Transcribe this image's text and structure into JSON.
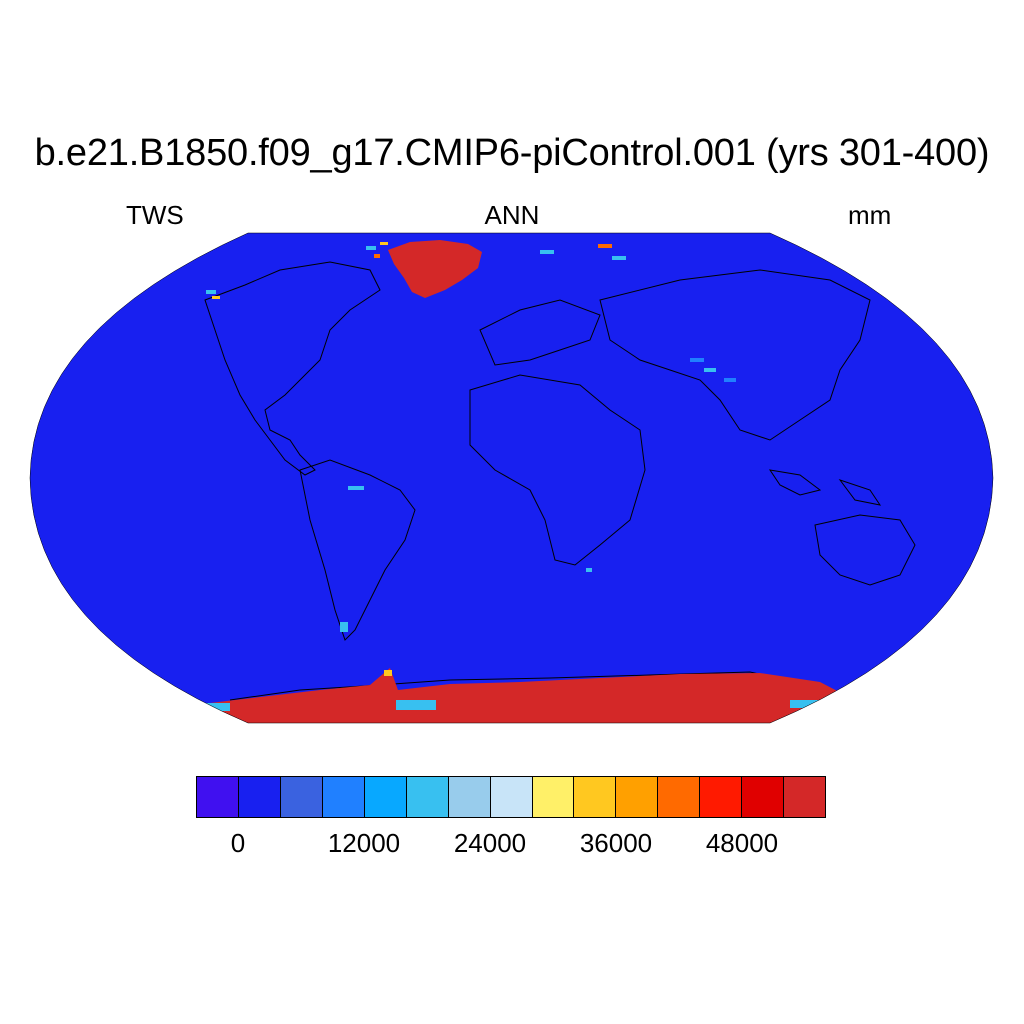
{
  "title": "b.e21.B1850.f09_g17.CMIP6-piControl.001 (yrs 301-400)",
  "left_label": "TWS",
  "center_label": "ANN",
  "right_label": "mm",
  "colorbar": {
    "colors": [
      "#4010f0",
      "#1820f0",
      "#3a62e0",
      "#2080ff",
      "#08a8ff",
      "#38c0f0",
      "#98ccec",
      "#c8e4f8",
      "#fff068",
      "#ffc820",
      "#ffa000",
      "#ff6a00",
      "#ff1a00",
      "#e00000",
      "#d42828"
    ],
    "tick_labels": [
      "0",
      "12000",
      "24000",
      "36000",
      "48000"
    ]
  },
  "map": {
    "ocean_color": "#1820f0",
    "ice_color": "#d42828",
    "accent_colors": [
      "#38c0f0",
      "#2080ff",
      "#ffc820",
      "#ff6a00"
    ]
  }
}
